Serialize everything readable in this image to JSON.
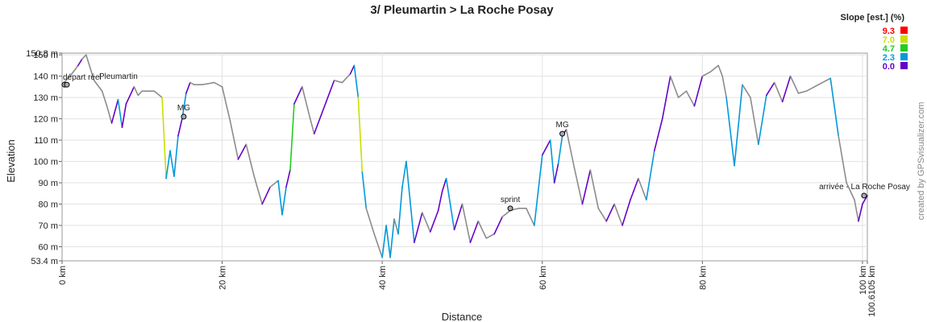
{
  "chart_data": {
    "type": "line",
    "title": "3/ Pleumartin > La Roche Posay",
    "xlabel": "Distance",
    "ylabel": "Elevation",
    "x_unit": "km",
    "y_unit": "m",
    "xlim": [
      0,
      100.6105
    ],
    "ylim": [
      53.4,
      150.8
    ],
    "x_ticks": [
      "0 km",
      "20 km",
      "40 km",
      "60 km",
      "80 km",
      "100 km",
      "100.6105 km"
    ],
    "y_ticks": [
      "150.8 m",
      "150 m",
      "140 m",
      "130 m",
      "120 m",
      "110 m",
      "100 m",
      "90 m",
      "80 m",
      "70 m",
      "60 m",
      "53.4 m"
    ],
    "grid": true,
    "legend": {
      "title": "Slope [est.] (%)",
      "position": "top-right",
      "entries": [
        {
          "label": "9.3",
          "color": "#ff0000"
        },
        {
          "label": "7.0",
          "color": "#c8e000"
        },
        {
          "label": "4.7",
          "color": "#22cc22"
        },
        {
          "label": "2.3",
          "color": "#0099dd"
        },
        {
          "label": "0.0",
          "color": "#6600cc"
        }
      ]
    },
    "annotations": [
      {
        "label": "départ réel",
        "x": 0.3,
        "y": 136
      },
      {
        "label": "Pleumartin",
        "x": 0.6,
        "y": 136
      },
      {
        "label": "MG",
        "x": 15.2,
        "y": 121
      },
      {
        "label": "sprint",
        "x": 56,
        "y": 78
      },
      {
        "label": "MG",
        "x": 62.5,
        "y": 113
      },
      {
        "label": "arrivée - La Roche Posay",
        "x": 100.2,
        "y": 84
      }
    ],
    "series": [
      {
        "x": [
          0,
          1,
          2,
          2.5,
          3,
          4,
          5,
          5.6,
          6.2,
          7,
          7.5,
          8,
          9,
          9.5,
          10,
          11.5,
          12.5,
          13,
          13.5,
          14,
          14.5,
          15,
          15.5,
          16,
          16.5,
          17.5,
          19,
          20,
          21,
          22,
          23,
          24,
          25,
          26,
          27,
          27.5,
          28,
          28.5,
          29,
          30,
          31,
          31.5,
          32,
          33,
          34,
          35,
          36,
          36.5,
          37,
          37.5,
          38,
          39,
          40,
          40.5,
          41,
          41.5,
          42,
          42.5,
          43,
          44,
          45,
          46,
          47,
          47.5,
          48,
          49,
          50,
          51,
          52,
          53,
          54,
          55,
          56,
          57,
          58,
          59,
          60,
          61,
          61.5,
          62,
          62.5,
          63,
          64,
          65,
          66,
          67,
          68,
          69,
          70,
          71,
          72,
          73,
          74,
          75,
          76,
          77,
          78,
          79,
          80,
          81,
          82,
          82.5,
          83,
          84,
          85,
          86,
          87,
          88,
          89,
          90,
          91,
          92,
          93,
          94,
          95,
          96,
          97,
          98,
          99,
          99.5,
          100,
          100.6105
        ],
        "y": [
          136,
          140,
          145,
          148,
          150,
          138,
          133,
          126,
          118,
          129,
          116,
          127,
          135,
          131,
          133,
          133,
          130,
          92,
          105,
          93,
          112,
          120,
          132,
          137,
          136,
          136,
          137,
          135,
          119,
          101,
          108,
          93,
          80,
          88,
          91,
          75,
          88,
          96,
          127,
          135,
          120,
          113,
          118,
          128,
          138,
          137,
          141,
          145,
          130,
          95,
          78,
          66,
          55,
          70,
          55,
          73,
          66,
          88,
          100,
          62,
          76,
          67,
          77,
          86,
          92,
          68,
          80,
          62,
          72,
          64,
          66,
          74,
          77,
          78,
          78,
          70,
          103,
          110,
          90,
          99,
          112,
          115,
          97,
          80,
          96,
          78,
          72,
          80,
          70,
          82,
          92,
          82,
          105,
          120,
          140,
          130,
          133,
          126,
          140,
          142,
          145,
          140,
          130,
          98,
          136,
          130,
          108,
          131,
          137,
          128,
          140,
          132,
          133,
          135,
          137,
          139,
          112,
          90,
          82,
          72,
          80,
          84
        ]
      }
    ],
    "credit": "created by GPSvisualizer.com"
  }
}
